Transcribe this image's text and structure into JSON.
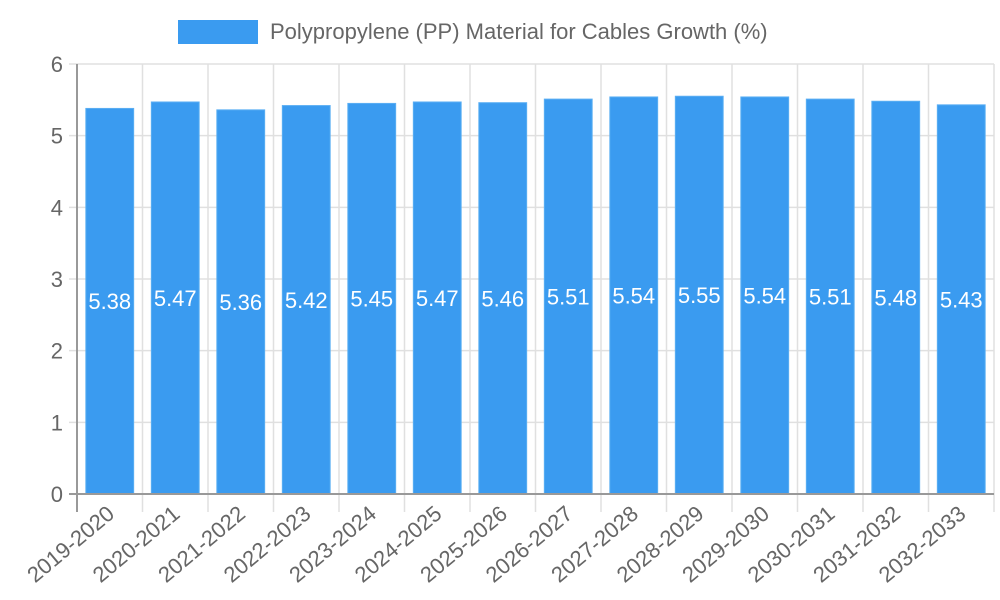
{
  "chart_data": {
    "type": "bar",
    "title": "",
    "legend": [
      "Polypropylene (PP) Material for Cables Growth (%)"
    ],
    "legend_position": "top",
    "categories": [
      "2019-2020",
      "2020-2021",
      "2021-2022",
      "2022-2023",
      "2023-2024",
      "2024-2025",
      "2025-2026",
      "2026-2027",
      "2027-2028",
      "2028-2029",
      "2029-2030",
      "2030-2031",
      "2031-2032",
      "2032-2033"
    ],
    "series": [
      {
        "name": "Polypropylene (PP) Material for Cables Growth (%)",
        "color": "#3a9bf0",
        "values": [
          5.38,
          5.47,
          5.36,
          5.42,
          5.45,
          5.47,
          5.46,
          5.51,
          5.54,
          5.55,
          5.54,
          5.51,
          5.48,
          5.43
        ]
      }
    ],
    "xlabel": "",
    "ylabel": "",
    "ylim": [
      0,
      6
    ],
    "yticks": [
      0,
      1,
      2,
      3,
      4,
      5,
      6
    ],
    "grid": true,
    "data_labels": true
  },
  "legend": {
    "label": "Polypropylene (PP) Material for Cables Growth (%)"
  }
}
